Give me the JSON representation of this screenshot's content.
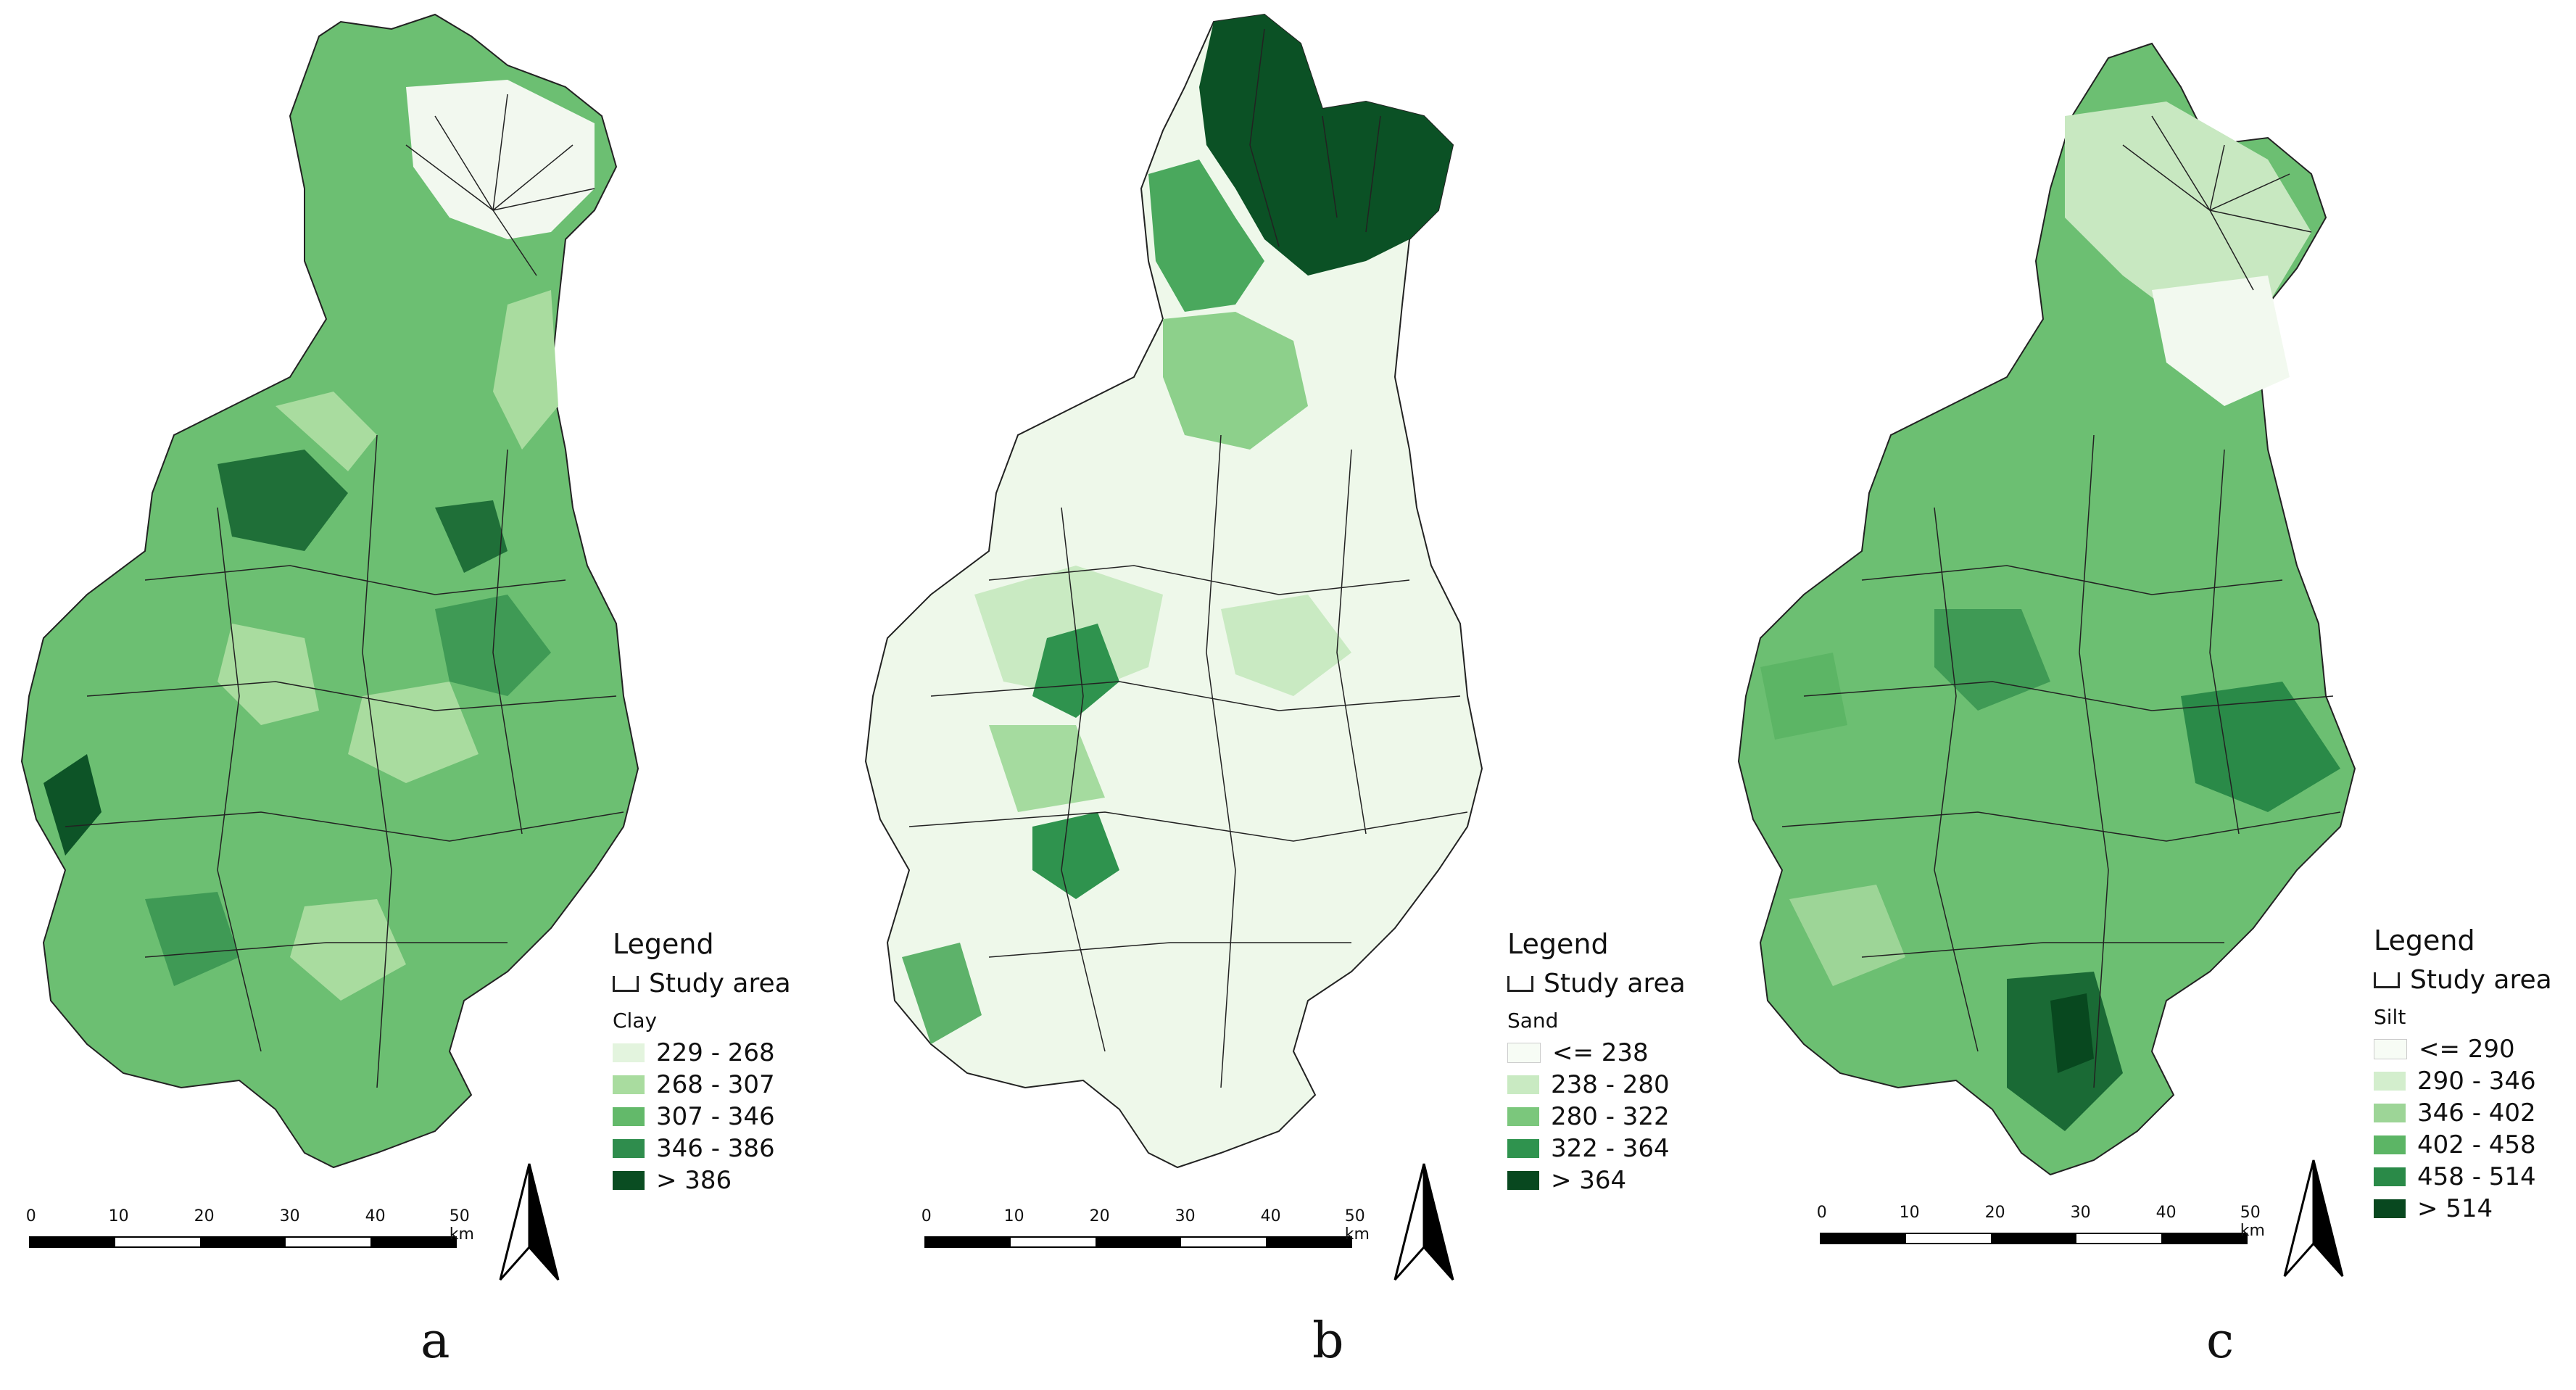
{
  "panels": [
    {
      "letter": "a",
      "legend_title": "Legend",
      "study_area_label": "Study area",
      "variable": "Clay",
      "classes": [
        {
          "label": "229 - 268",
          "color": "#e3f4de"
        },
        {
          "label": "268 - 307",
          "color": "#a9dc9f"
        },
        {
          "label": "307 - 346",
          "color": "#63b96a"
        },
        {
          "label": "346 - 386",
          "color": "#2f8d4d"
        },
        {
          "label": "> 386",
          "color": "#0a4d22"
        }
      ],
      "scale_labels": [
        "0",
        "10",
        "20",
        "30",
        "40",
        "50 km"
      ]
    },
    {
      "letter": "b",
      "legend_title": "Legend",
      "study_area_label": "Study area",
      "variable": "Sand",
      "classes": [
        {
          "label": "<= 238",
          "color": "#f7fcf5"
        },
        {
          "label": "238 - 280",
          "color": "#c9eac2"
        },
        {
          "label": "280 - 322",
          "color": "#7bc77c"
        },
        {
          "label": "322 - 364",
          "color": "#2f934e"
        },
        {
          "label": "> 364",
          "color": "#08481f"
        }
      ],
      "scale_labels": [
        "0",
        "10",
        "20",
        "30",
        "40",
        "50 km"
      ]
    },
    {
      "letter": "c",
      "legend_title": "Legend",
      "study_area_label": "Study area",
      "variable": "Silt",
      "classes": [
        {
          "label": "<= 290",
          "color": "#f7fcf5"
        },
        {
          "label": "290 - 346",
          "color": "#d3eecd"
        },
        {
          "label": "346 - 402",
          "color": "#9dd597"
        },
        {
          "label": "402 - 458",
          "color": "#5cb565"
        },
        {
          "label": "458 - 514",
          "color": "#2a8a48"
        },
        {
          "label": "> 514",
          "color": "#08481f"
        }
      ],
      "scale_labels": [
        "0",
        "10",
        "20",
        "30",
        "40",
        "50 km"
      ]
    }
  ]
}
